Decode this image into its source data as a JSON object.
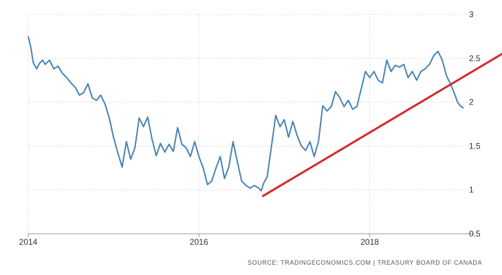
{
  "source_text": "SOURCE: TRADINGECONOMICS.COM  |  TREASURY BOARD OF CANADA",
  "colors": {
    "series": "#4682b4",
    "trend": "#d62728",
    "grid": "#c8c8c8",
    "axis": "#999999"
  },
  "chart_data": {
    "type": "line",
    "title": "",
    "xlabel": "",
    "ylabel": "",
    "xlim": [
      2014.0,
      2019.55
    ],
    "ylim": [
      0.5,
      3.0
    ],
    "x_ticks": [
      {
        "value": 2014,
        "label": "2014"
      },
      {
        "value": 2016,
        "label": "2016"
      },
      {
        "value": 2018,
        "label": "2018"
      }
    ],
    "y_ticks": [
      {
        "value": 0.5,
        "label": "0.5"
      },
      {
        "value": 1,
        "label": "1"
      },
      {
        "value": 1.5,
        "label": "1.5"
      },
      {
        "value": 2,
        "label": "2"
      },
      {
        "value": 2.5,
        "label": "2.5"
      },
      {
        "value": 3,
        "label": "3"
      }
    ],
    "grid": true,
    "series": [
      {
        "style": "line",
        "x": [
          2014.0,
          2014.03,
          2014.06,
          2014.1,
          2014.13,
          2014.17,
          2014.2,
          2014.25,
          2014.3,
          2014.35,
          2014.4,
          2014.45,
          2014.5,
          2014.55,
          2014.6,
          2014.65,
          2014.7,
          2014.75,
          2014.8,
          2014.85,
          2014.9,
          2014.95,
          2015.0,
          2015.05,
          2015.1,
          2015.15,
          2015.2,
          2015.25,
          2015.3,
          2015.35,
          2015.4,
          2015.45,
          2015.5,
          2015.55,
          2015.6,
          2015.65,
          2015.7,
          2015.75,
          2015.8,
          2015.85,
          2015.9,
          2015.95,
          2016.0,
          2016.05,
          2016.1,
          2016.15,
          2016.2,
          2016.25,
          2016.3,
          2016.35,
          2016.4,
          2016.45,
          2016.5,
          2016.55,
          2016.6,
          2016.65,
          2016.7,
          2016.73,
          2016.76,
          2016.8,
          2016.85,
          2016.9,
          2016.95,
          2017.0,
          2017.05,
          2017.1,
          2017.15,
          2017.2,
          2017.25,
          2017.3,
          2017.35,
          2017.4,
          2017.45,
          2017.5,
          2017.55,
          2017.6,
          2017.65,
          2017.7,
          2017.75,
          2017.8,
          2017.85,
          2017.9,
          2017.95,
          2018.0,
          2018.05,
          2018.1,
          2018.15,
          2018.2,
          2018.25,
          2018.3,
          2018.35,
          2018.4,
          2018.45,
          2018.5,
          2018.55,
          2018.6,
          2018.65,
          2018.7,
          2018.75,
          2018.8,
          2018.85,
          2018.9,
          2018.95,
          2019.0,
          2019.03,
          2019.06,
          2019.1
        ],
        "y": [
          2.75,
          2.63,
          2.45,
          2.38,
          2.44,
          2.48,
          2.43,
          2.48,
          2.38,
          2.41,
          2.33,
          2.28,
          2.22,
          2.17,
          2.08,
          2.11,
          2.21,
          2.05,
          2.02,
          2.08,
          1.98,
          1.82,
          1.6,
          1.42,
          1.26,
          1.55,
          1.35,
          1.48,
          1.82,
          1.72,
          1.83,
          1.58,
          1.39,
          1.53,
          1.43,
          1.52,
          1.44,
          1.71,
          1.52,
          1.48,
          1.38,
          1.55,
          1.38,
          1.25,
          1.06,
          1.1,
          1.25,
          1.38,
          1.13,
          1.26,
          1.55,
          1.32,
          1.1,
          1.05,
          1.02,
          1.05,
          1.02,
          0.99,
          1.08,
          1.15,
          1.5,
          1.85,
          1.72,
          1.8,
          1.6,
          1.78,
          1.62,
          1.5,
          1.45,
          1.55,
          1.38,
          1.55,
          1.96,
          1.9,
          1.95,
          2.12,
          2.05,
          1.95,
          2.02,
          1.92,
          1.95,
          2.15,
          2.35,
          2.28,
          2.35,
          2.25,
          2.22,
          2.48,
          2.35,
          2.42,
          2.4,
          2.43,
          2.28,
          2.35,
          2.25,
          2.35,
          2.38,
          2.43,
          2.53,
          2.58,
          2.48,
          2.3,
          2.2,
          2.08,
          2.0,
          1.96,
          1.93
        ]
      },
      {
        "style": "trendline",
        "x": [
          2016.75,
          2019.55
        ],
        "y": [
          0.93,
          2.55
        ]
      }
    ]
  }
}
